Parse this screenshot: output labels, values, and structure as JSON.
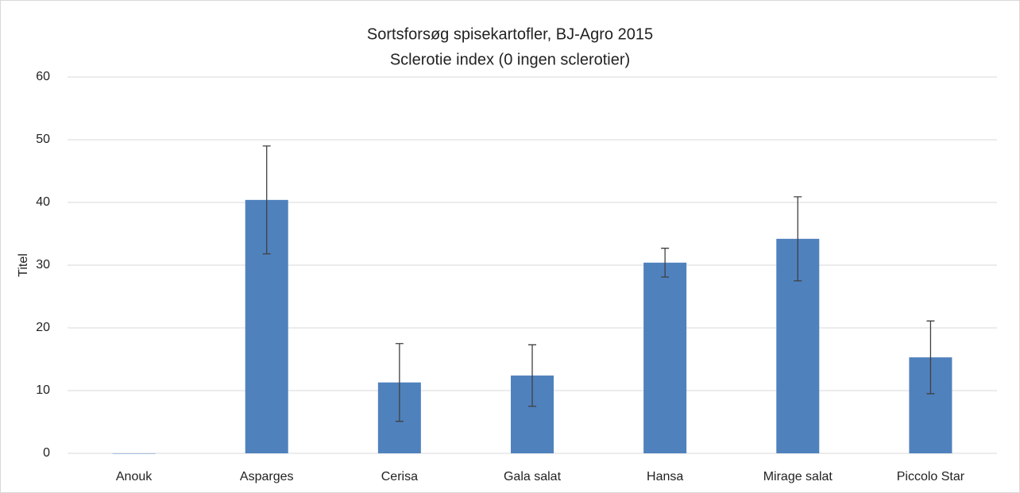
{
  "chart_data": {
    "type": "bar",
    "title": "Sortsforsøg spisekartofler, BJ-Agro 2015",
    "subtitle": "Sclerotie index (0 ingen sclerotier)",
    "y_label": "Titel",
    "categories": [
      "Anouk",
      "Asparges",
      "Cerisa",
      "Gala salat",
      "Hansa",
      "Mirage salat",
      "Piccolo Star"
    ],
    "values": [
      0,
      40.4,
      11.3,
      12.4,
      30.4,
      34.2,
      15.3
    ],
    "errors": [
      0,
      8.6,
      6.2,
      4.9,
      2.3,
      6.7,
      5.8
    ],
    "color": "#4f81bd",
    "ylim": [
      0,
      60
    ],
    "yticks": [
      0,
      10,
      20,
      30,
      40,
      50,
      60
    ],
    "grid": true
  }
}
